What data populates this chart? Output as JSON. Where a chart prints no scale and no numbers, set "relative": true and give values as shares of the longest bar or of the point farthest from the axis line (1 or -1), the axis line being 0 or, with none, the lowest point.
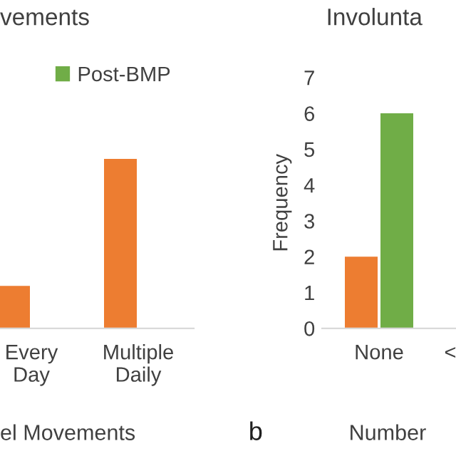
{
  "chart_data": [
    {
      "type": "bar",
      "title": "vements",
      "xlabel": "el Movements",
      "categories": [
        "Every Day",
        "Multiple Daily"
      ],
      "relative": true,
      "legend": "top",
      "grid": false,
      "series": [
        {
          "color": "#ed7d31",
          "values": [
            0.25,
            1
          ]
        },
        {
          "name": "Post-BMP",
          "color": "#70ad47",
          "values": [
            null,
            null
          ]
        }
      ]
    },
    {
      "type": "bar",
      "title": "Involunta",
      "xlabel": "Number",
      "ylabel": "Frequency",
      "categories": [
        "None",
        "<"
      ],
      "ylim": [
        0,
        7
      ],
      "yticks": [
        0,
        1,
        2,
        3,
        4,
        5,
        6,
        7
      ],
      "grid": false,
      "annotations": [
        "b"
      ],
      "series": [
        {
          "color": "#ed7d31",
          "values": [
            2,
            null
          ]
        },
        {
          "color": "#70ad47",
          "values": [
            6,
            null
          ]
        }
      ]
    }
  ]
}
